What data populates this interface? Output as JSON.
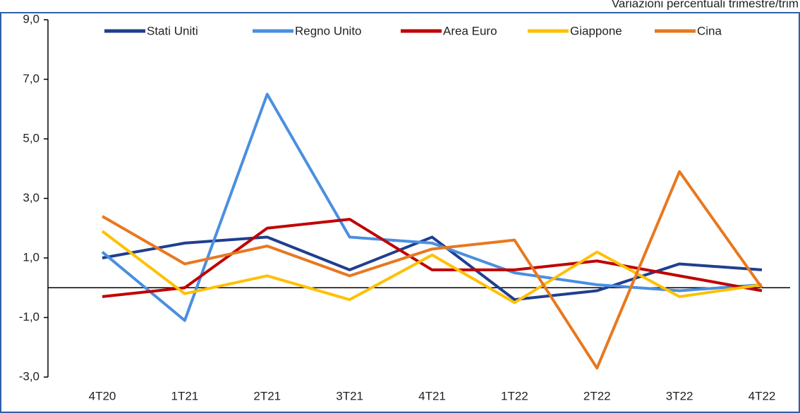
{
  "chart_data": {
    "type": "line",
    "subtitle": "Variazioni percentuali trimestre/trim",
    "categories": [
      "4T20",
      "1T21",
      "2T21",
      "3T21",
      "4T21",
      "1T22",
      "2T22",
      "3T22",
      "4T22"
    ],
    "series": [
      {
        "name": "Stati Uniti",
        "color": "#1f3f8f",
        "values": [
          1.0,
          1.5,
          1.7,
          0.6,
          1.7,
          -0.4,
          -0.1,
          0.8,
          0.6
        ]
      },
      {
        "name": "Regno Unito",
        "color": "#4a8fe0",
        "values": [
          1.2,
          -1.1,
          6.5,
          1.7,
          1.5,
          0.5,
          0.1,
          -0.1,
          0.1
        ]
      },
      {
        "name": "Area Euro",
        "color": "#c00000",
        "values": [
          -0.3,
          0.0,
          2.0,
          2.3,
          0.6,
          0.6,
          0.9,
          0.4,
          -0.1
        ]
      },
      {
        "name": "Giappone",
        "color": "#ffc000",
        "values": [
          1.9,
          -0.2,
          0.4,
          -0.4,
          1.1,
          -0.5,
          1.2,
          -0.3,
          0.1
        ]
      },
      {
        "name": "Cina",
        "color": "#e8781e",
        "values": [
          2.4,
          0.8,
          1.4,
          0.4,
          1.3,
          1.6,
          -2.7,
          3.9,
          0.0
        ]
      }
    ],
    "ylim": [
      -3,
      9
    ],
    "yticks": [
      {
        "value": 9,
        "label": "9,0"
      },
      {
        "value": 7,
        "label": "7,0"
      },
      {
        "value": 5,
        "label": "5,0"
      },
      {
        "value": 3,
        "label": "3,0"
      },
      {
        "value": 1,
        "label": "1,0"
      },
      {
        "value": -1,
        "label": "-1,0"
      },
      {
        "value": -3,
        "label": "-3,0"
      }
    ],
    "legend": "top"
  }
}
